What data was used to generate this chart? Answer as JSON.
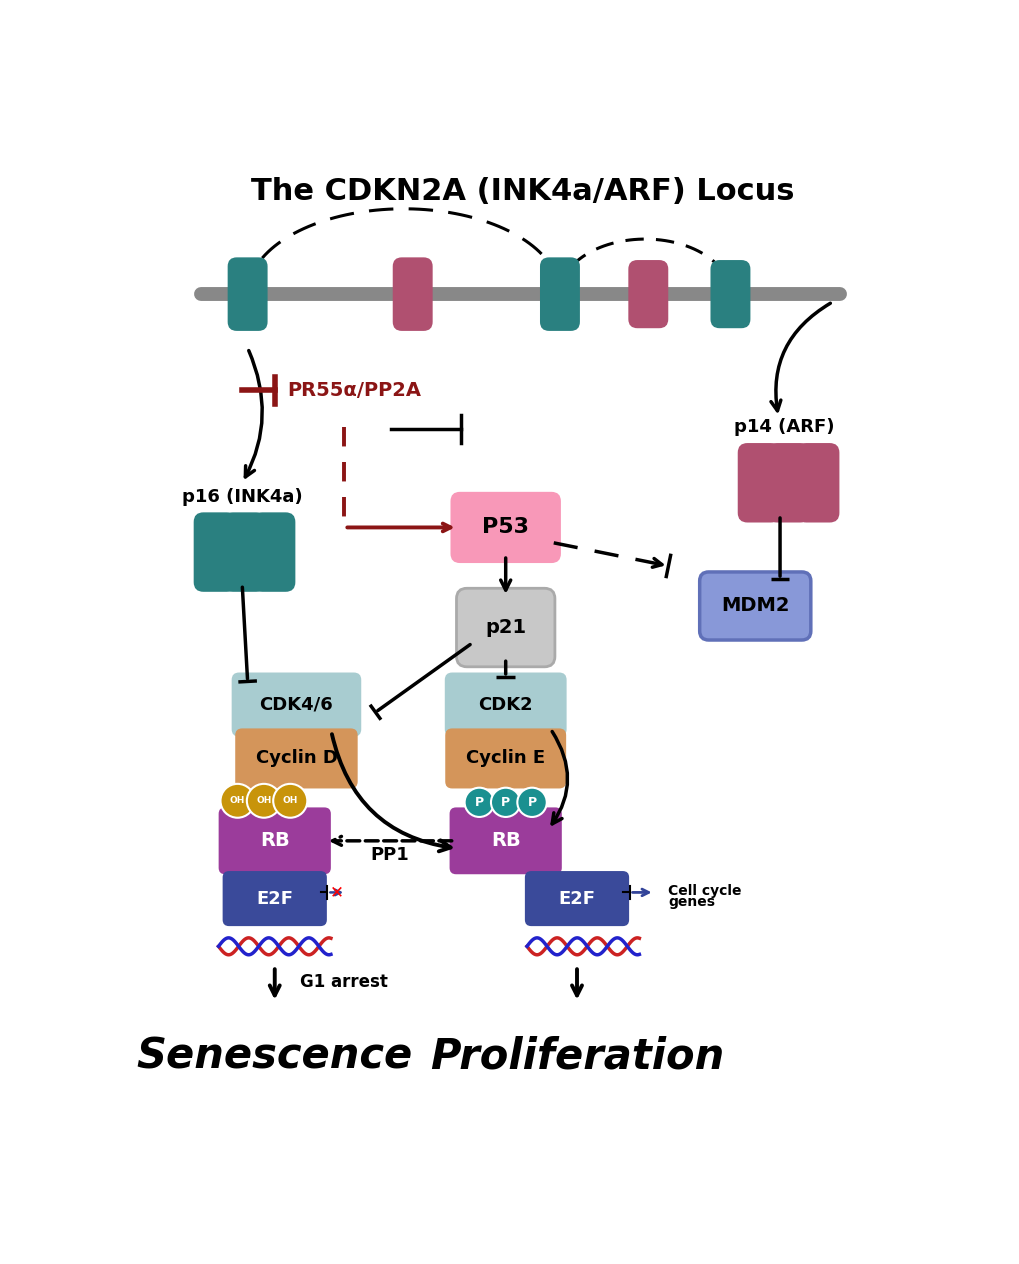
{
  "title": "The CDKN2A (INK4a/ARF) Locus",
  "bg_color": "#ffffff",
  "colors": {
    "teal": "#2a8080",
    "mauve": "#b05070",
    "pink_p53": "#f898b8",
    "light_blue_cdk": "#a8ccd0",
    "orange_cyclin": "#d4955a",
    "purple_rb": "#9b3c9b",
    "gold_oh": "#c8940a",
    "teal_p": "#1a9090",
    "blue_e2f": "#3a4a9a",
    "blue_mdm2": "#8898d8",
    "gray_p21": "#c8c8c8",
    "red_dark": "#8b1515",
    "black": "#111111",
    "dna_red": "#cc2222",
    "dna_blue": "#2222cc",
    "gray_line": "#888888",
    "white": "#ffffff"
  },
  "senescence_text": "Senescence",
  "proliferation_text": "Proliferation"
}
